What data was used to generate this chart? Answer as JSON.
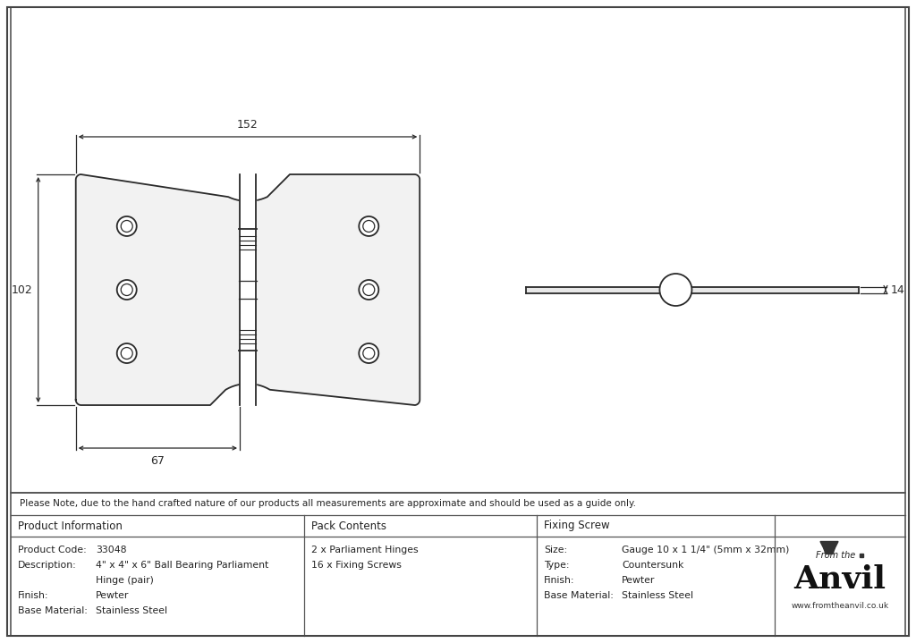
{
  "bg_color": "#ffffff",
  "line_color": "#2a2a2a",
  "dim_color": "#2a2a2a",
  "note_text": "Please Note, due to the hand crafted nature of our products all measurements are approximate and should be used as a guide only.",
  "table": {
    "col1_header": "Product Information",
    "col2_header": "Pack Contents",
    "col3_header": "Fixing Screw",
    "col1_rows": [
      [
        "Product Code:",
        "33048"
      ],
      [
        "Description:",
        "4\" x 4\" x 6\" Ball Bearing Parliament"
      ],
      [
        "",
        "Hinge (pair)"
      ],
      [
        "Finish:",
        "Pewter"
      ],
      [
        "Base Material:",
        "Stainless Steel"
      ]
    ],
    "col2_rows": [
      "2 x Parliament Hinges",
      "16 x Fixing Screws"
    ],
    "col3_rows": [
      [
        "Size:",
        "Gauge 10 x 1 1/4\" (5mm x 32mm)"
      ],
      [
        "Type:",
        "Countersunk"
      ],
      [
        "Finish:",
        "Pewter"
      ],
      [
        "Base Material:",
        "Stainless Steel"
      ]
    ]
  },
  "dim_152": "152",
  "dim_102": "102",
  "dim_67": "67",
  "dim_14": "14"
}
